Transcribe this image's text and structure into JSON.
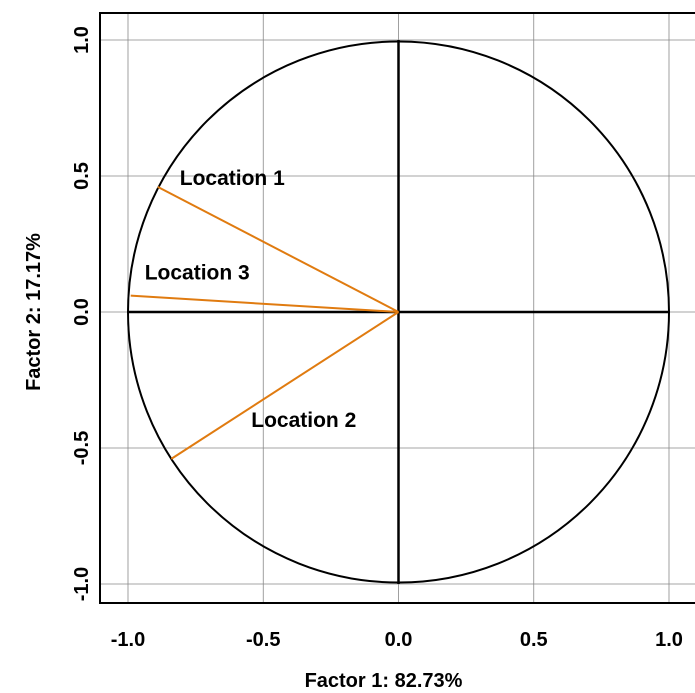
{
  "chart_data": {
    "type": "scatter",
    "subtype": "correlation-circle",
    "title": "",
    "xlabel": "Factor 1: 82.73%",
    "ylabel": "Factor 2: 17.17%",
    "xlim": [
      -1.1,
      1.0
    ],
    "ylim": [
      -1.1,
      1.1
    ],
    "xticks": [
      -1.0,
      -0.5,
      0.0,
      0.5,
      1.0
    ],
    "xtick_labels": [
      "-1.0",
      "-0.5",
      "0.0",
      "0.5",
      "1.0"
    ],
    "yticks": [
      -1.0,
      -0.5,
      0.0,
      0.5,
      1.0
    ],
    "ytick_labels": [
      "-1.0",
      "-0.5",
      "0.0",
      "0.5",
      "1.0"
    ],
    "grid": true,
    "unit_circle": true,
    "vector_color": "#e07b10",
    "series": [
      {
        "name": "Location 1",
        "x": -0.89,
        "y": 0.46
      },
      {
        "name": "Location 3",
        "x": -0.99,
        "y": 0.06
      },
      {
        "name": "Location 2",
        "x": -0.84,
        "y": -0.54
      }
    ]
  }
}
